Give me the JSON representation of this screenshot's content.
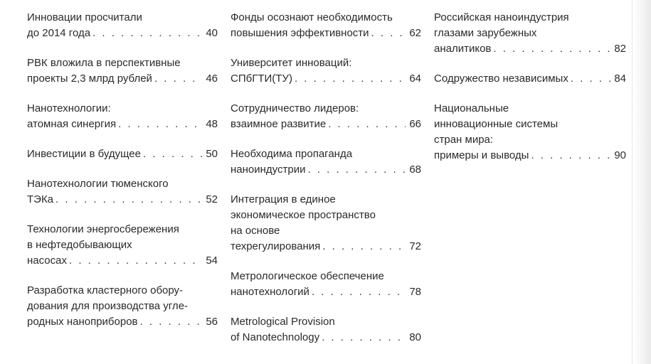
{
  "columns": [
    {
      "entries": [
        {
          "lines": [
            "Инновации просчитали",
            "до 2014 года"
          ],
          "page": "40"
        },
        {
          "lines": [
            "РВК вложила в перспективные",
            "проекты 2,3 млрд рублей"
          ],
          "page": "46"
        },
        {
          "lines": [
            "Нанотехнологии:",
            "атомная синергия"
          ],
          "page": "48"
        },
        {
          "lines": [
            "Инвестиции в будущее"
          ],
          "page": "50"
        },
        {
          "lines": [
            "Нанотехнологии тюменского",
            "ТЭКа"
          ],
          "page": "52"
        },
        {
          "lines": [
            "Технологии энергосбережения",
            "в нефтедобывающих",
            "насосах"
          ],
          "page": "54"
        },
        {
          "lines": [
            "Разработка кластерного обору-",
            "дования для производства угле-",
            "родных наноприборов"
          ],
          "page": "56"
        }
      ]
    },
    {
      "entries": [
        {
          "lines": [
            "Фонды осознают необходимость",
            "повышения эффективности"
          ],
          "page": "62"
        },
        {
          "lines": [
            "Университет инноваций:",
            "СПбГТИ(ТУ)"
          ],
          "page": "64"
        },
        {
          "lines": [
            "Сотрудничество лидеров:",
            "взаимное развитие"
          ],
          "page": "66"
        },
        {
          "lines": [
            "Необходима пропаганда",
            "наноиндустрии"
          ],
          "page": "68"
        },
        {
          "lines": [
            "Интеграция в единое",
            "экономическое пространство",
            "на основе",
            "техрегулирования"
          ],
          "page": "72"
        },
        {
          "lines": [
            "Метрологическое обеспечение",
            "нанотехнологий"
          ],
          "page": "78"
        },
        {
          "lines": [
            "Metrological Provision",
            "of Nanotechnology"
          ],
          "page": "80"
        }
      ]
    },
    {
      "entries": [
        {
          "lines": [
            "Российская наноиндустрия",
            "глазами зарубежных",
            "аналитиков"
          ],
          "page": "82"
        },
        {
          "lines": [
            "Содружество независимых"
          ],
          "page": "84"
        },
        {
          "lines": [
            "Национальные",
            "инновационные системы",
            "стран мира:",
            "примеры и выводы"
          ],
          "page": "90"
        }
      ]
    }
  ]
}
